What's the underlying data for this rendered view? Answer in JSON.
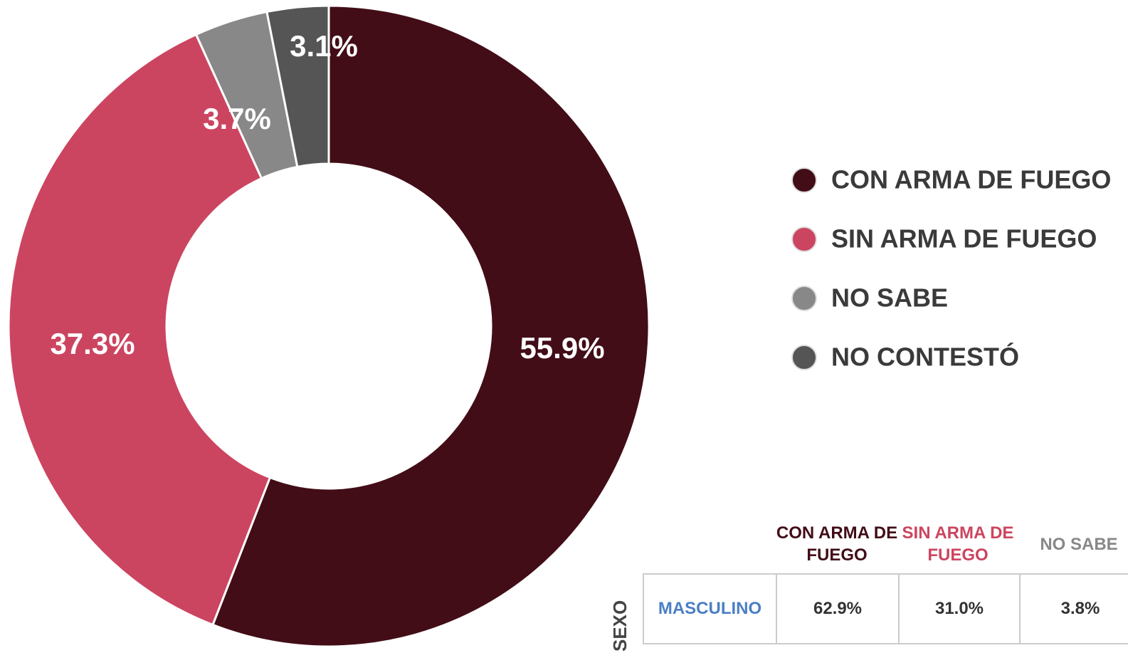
{
  "chart_data": {
    "type": "donut",
    "categories": [
      "CON ARMA DE FUEGO",
      "SIN ARMA DE FUEGO",
      "NO SABE",
      "NO CONTESTÓ"
    ],
    "values": [
      55.9,
      37.3,
      3.7,
      3.1
    ],
    "value_labels": [
      "55.9%",
      "37.3%",
      "3.7%",
      "3.1%"
    ],
    "colors": [
      "#420d17",
      "#cc4560",
      "#888888",
      "#555555"
    ],
    "legend": "right"
  },
  "table": {
    "columns": [
      "CON ARMA DE FUEGO",
      "SIN ARMA DE FUEGO",
      "NO SABE"
    ],
    "row_group": "SEXO",
    "rows": [
      [
        "MASCULINO",
        "62.9%",
        "31.0%",
        "3.8%"
      ]
    ]
  }
}
